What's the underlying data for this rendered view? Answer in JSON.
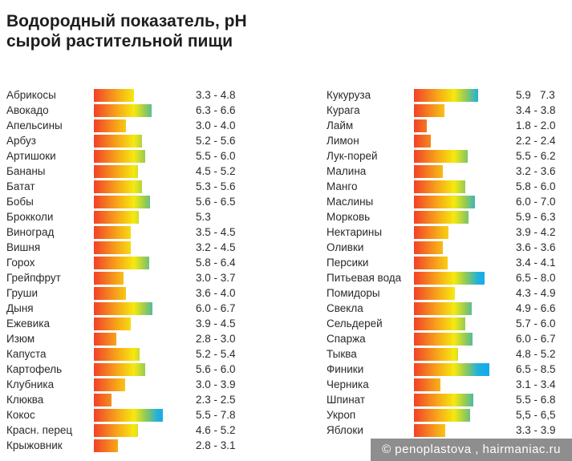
{
  "title_line1": "Водородный показатель, pH",
  "title_line2": "сырой растительной пищи",
  "watermark": "© penoplastova , hairmaniac.ru",
  "chart_data": {
    "type": "bar",
    "title": "Водородный показатель, pH сырой растительной пищи",
    "xlabel": "",
    "ylabel": "pH",
    "columns": [
      [
        {
          "name": "Абрикосы",
          "label": "3.3 - 4.8",
          "min": 3.3,
          "max": 4.8
        },
        {
          "name": "Авокадо",
          "label": "6.3 - 6.6",
          "min": 6.3,
          "max": 6.6
        },
        {
          "name": "Апельсины",
          "label": "3.0 - 4.0",
          "min": 3.0,
          "max": 4.0
        },
        {
          "name": "Арбуз",
          "label": "5.2 - 5.6",
          "min": 5.2,
          "max": 5.6
        },
        {
          "name": "Артишоки",
          "label": "5.5 - 6.0",
          "min": 5.5,
          "max": 6.0
        },
        {
          "name": "Бананы",
          "label": "4.5 - 5.2",
          "min": 4.5,
          "max": 5.2
        },
        {
          "name": "Батат",
          "label": "5.3 - 5.6",
          "min": 5.3,
          "max": 5.6
        },
        {
          "name": "Бобы",
          "label": "5.6 - 6.5",
          "min": 5.6,
          "max": 6.5
        },
        {
          "name": "Брокколи",
          "label": "5.3",
          "min": 5.3,
          "max": 5.3
        },
        {
          "name": "Виноград",
          "label": "3.5 - 4.5",
          "min": 3.5,
          "max": 4.5
        },
        {
          "name": "Вишня",
          "label": "3.2 - 4.5",
          "min": 3.2,
          "max": 4.5
        },
        {
          "name": "Горох",
          "label": "5.8 - 6.4",
          "min": 5.8,
          "max": 6.4
        },
        {
          "name": "Грейпфрут",
          "label": "3.0 - 3.7",
          "min": 3.0,
          "max": 3.7
        },
        {
          "name": "Груши",
          "label": "3.6 - 4.0",
          "min": 3.6,
          "max": 4.0
        },
        {
          "name": "Дыня",
          "label": "6.0 - 6.7",
          "min": 6.0,
          "max": 6.7
        },
        {
          "name": "Ежевика",
          "label": "3.9 - 4.5",
          "min": 3.9,
          "max": 4.5
        },
        {
          "name": "Изюм",
          "label": "2.8 - 3.0",
          "min": 2.8,
          "max": 3.0
        },
        {
          "name": "Капуста",
          "label": "5.2 - 5.4",
          "min": 5.2,
          "max": 5.4
        },
        {
          "name": "Картофель",
          "label": "5.6 - 6.0",
          "min": 5.6,
          "max": 6.0
        },
        {
          "name": "Клубника",
          "label": "3.0 - 3.9",
          "min": 3.0,
          "max": 3.9
        },
        {
          "name": "Клюква",
          "label": "2.3 - 2.5",
          "min": 2.3,
          "max": 2.5
        },
        {
          "name": "Кокос",
          "label": "5.5 - 7.8",
          "min": 5.5,
          "max": 7.8
        },
        {
          "name": "Красн. перец",
          "label": "4.6 - 5.2",
          "min": 4.6,
          "max": 5.2
        },
        {
          "name": "Крыжовник",
          "label": "2.8 - 3.1",
          "min": 2.8,
          "max": 3.1
        }
      ],
      [
        {
          "name": "Кукуруза",
          "label": "5.9   7.3",
          "min": 5.9,
          "max": 7.3
        },
        {
          "name": "Курага",
          "label": "3.4 - 3.8",
          "min": 3.4,
          "max": 3.8
        },
        {
          "name": "Лайм",
          "label": "1.8 - 2.0",
          "min": 1.8,
          "max": 2.0
        },
        {
          "name": "Лимон",
          "label": "2.2 - 2.4",
          "min": 2.2,
          "max": 2.4
        },
        {
          "name": "Лук-порей",
          "label": "5.5 - 6.2",
          "min": 5.5,
          "max": 6.2
        },
        {
          "name": "Малина",
          "label": "3.2 - 3.6",
          "min": 3.2,
          "max": 3.6
        },
        {
          "name": "Манго",
          "label": "5.8 - 6.0",
          "min": 5.8,
          "max": 6.0
        },
        {
          "name": "Маслины",
          "label": "6.0 - 7.0",
          "min": 6.0,
          "max": 7.0
        },
        {
          "name": "Морковь",
          "label": "5.9 - 6.3",
          "min": 5.9,
          "max": 6.3
        },
        {
          "name": "Нектарины",
          "label": "3.9 - 4.2",
          "min": 3.9,
          "max": 4.2
        },
        {
          "name": "Оливки",
          "label": "3.6 - 3.6",
          "min": 3.6,
          "max": 3.6
        },
        {
          "name": "Персики",
          "label": "3.4 - 4.1",
          "min": 3.4,
          "max": 4.1
        },
        {
          "name": "Питьевая вода",
          "label": "6.5 - 8.0",
          "min": 6.5,
          "max": 8.0
        },
        {
          "name": "Помидоры",
          "label": "4.3 - 4.9",
          "min": 4.3,
          "max": 4.9
        },
        {
          "name": "Свекла",
          "label": "4.9 - 6.6",
          "min": 4.9,
          "max": 6.6
        },
        {
          "name": "Сельдерей",
          "label": "5.7 - 6.0",
          "min": 5.7,
          "max": 6.0
        },
        {
          "name": "Спаржа",
          "label": "6.0 - 6.7",
          "min": 6.0,
          "max": 6.7
        },
        {
          "name": "Тыква",
          "label": "4.8 - 5.2",
          "min": 4.8,
          "max": 5.2
        },
        {
          "name": "Финики",
          "label": "6.5 - 8.5",
          "min": 6.5,
          "max": 8.5
        },
        {
          "name": "Черника",
          "label": "3.1 - 3.4",
          "min": 3.1,
          "max": 3.4
        },
        {
          "name": "Шпинат",
          "label": "5.5 - 6.8",
          "min": 5.5,
          "max": 6.8
        },
        {
          "name": "Укроп",
          "label": "5,5 - 6,5",
          "min": 5.5,
          "max": 6.5
        },
        {
          "name": "Яблоки",
          "label": "3.3 - 3.9",
          "min": 3.3,
          "max": 3.9
        }
      ]
    ]
  }
}
